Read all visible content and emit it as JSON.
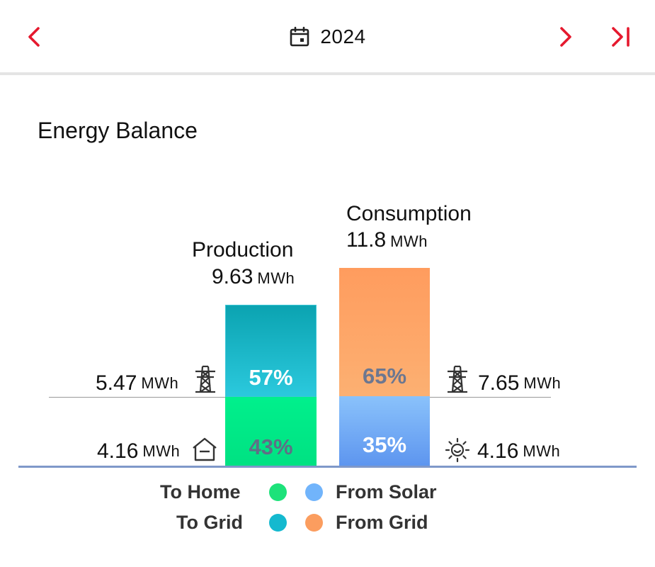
{
  "header": {
    "period": "2024",
    "prev_icon": "chevron-left-icon",
    "next_icon": "chevron-right-icon",
    "last_icon": "skip-to-end-icon",
    "calendar_icon": "calendar-icon",
    "accent_color": "#e5192e"
  },
  "title": "Energy Balance",
  "chart_data": {
    "type": "bar",
    "stacked": true,
    "normalized_percent": true,
    "categories": [
      "Production",
      "Consumption"
    ],
    "totals": [
      {
        "value": "9.63",
        "unit": "MWh"
      },
      {
        "value": "11.8",
        "unit": "MWh"
      }
    ],
    "production": {
      "label": "Production",
      "total": "9.63",
      "unit": "MWh",
      "segments": [
        {
          "name": "To Grid",
          "percent": 57,
          "percent_label": "57%",
          "value": "5.47",
          "unit": "MWh",
          "icon": "power-pylon-icon",
          "color": "#1cb5c8"
        },
        {
          "name": "To Home",
          "percent": 43,
          "percent_label": "43%",
          "value": "4.16",
          "unit": "MWh",
          "icon": "house-icon",
          "color": "#00e887"
        }
      ]
    },
    "consumption": {
      "label": "Consumption",
      "total": "11.8",
      "unit": "MWh",
      "segments": [
        {
          "name": "From Grid",
          "percent": 65,
          "percent_label": "65%",
          "value": "7.65",
          "unit": "MWh",
          "icon": "power-pylon-icon",
          "color": "#fba165"
        },
        {
          "name": "From Solar",
          "percent": 35,
          "percent_label": "35%",
          "value": "4.16",
          "unit": "MWh",
          "icon": "sun-icon",
          "color": "#6ea8f7"
        }
      ]
    }
  },
  "legend": {
    "to_home": {
      "label": "To Home",
      "color": "#1de27a"
    },
    "to_grid": {
      "label": "To Grid",
      "color": "#14b9cf"
    },
    "from_solar": {
      "label": "From Solar",
      "color": "#71b4fb"
    },
    "from_grid": {
      "label": "From Grid",
      "color": "#fb9d5f"
    }
  }
}
